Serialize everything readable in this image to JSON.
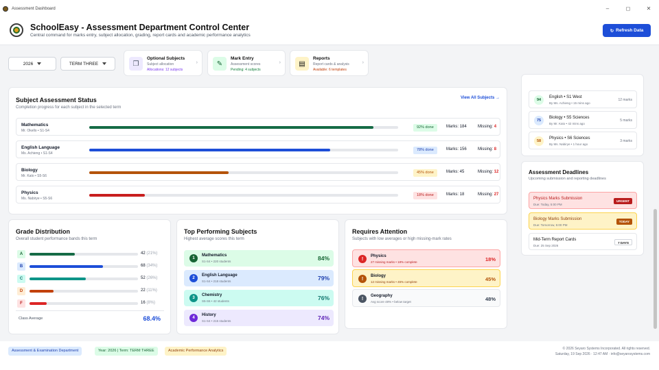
{
  "window": {
    "title": "Assessment Dashboard"
  },
  "header": {
    "title": "SchoolEasy - Assessment Department Control Center",
    "subtitle": "Central command for marks entry, subject allocation, grading, report cards and academic performance analytics",
    "refresh_label": "Refresh Data"
  },
  "filters": {
    "year": "2026",
    "term": "TERM THREE"
  },
  "quick": [
    {
      "title": "Optional Subjects",
      "sub": "Subject allocation",
      "action": "Allocations: 12 subjects"
    },
    {
      "title": "Mark Entry",
      "sub": "Assessment scores",
      "action": "Pending: 4 subjects"
    },
    {
      "title": "Reports",
      "sub": "Report cards & analysis",
      "action": "Available: 6 templates"
    }
  ],
  "status": {
    "title": "Subject Assessment Status",
    "subtitle": "Completion progress for each subject in the selected term",
    "view_all": "View All Subjects →",
    "rows": [
      {
        "name": "Mathematics",
        "meta": "Mr. Okello • S1-S4",
        "progress": 0.92,
        "pct": "92% done",
        "marks": "Marks: 184",
        "missing_label": "Missing:",
        "missing": "4",
        "color": "#166b46"
      },
      {
        "name": "English Language",
        "meta": "Ms. Achieng • S1-S4",
        "progress": 0.78,
        "pct": "78% done",
        "marks": "Marks: 156",
        "missing_label": "Missing:",
        "missing": "8",
        "color": "#1d4ed8"
      },
      {
        "name": "Biology",
        "meta": "Mr. Kato • S5-S6",
        "progress": 0.45,
        "pct": "45% done",
        "marks": "Marks: 45",
        "missing_label": "Missing:",
        "missing": "12",
        "color": "#b45309"
      },
      {
        "name": "Physics",
        "meta": "Ms. Nabirye • S5-S6",
        "progress": 0.18,
        "pct": "18% done",
        "marks": "Marks: 18",
        "missing_label": "Missing:",
        "missing": "27",
        "color": "#c81e1e"
      }
    ]
  },
  "recent": [
    {
      "score": "94",
      "name": "English • S1 West",
      "by": "By Ms. Achieng • 15 mins ago",
      "marks": "12 marks"
    },
    {
      "score": "75",
      "name": "Biology • S5 Sciences",
      "by": "By Mr. Kato • 42 mins ago",
      "marks": "5 marks"
    },
    {
      "score": "58",
      "name": "Physics • S6 Sciences",
      "by": "By Ms. Nabirye • 1 hour ago",
      "marks": "3 marks"
    }
  ],
  "deadlines": {
    "title": "Assessment Deadlines",
    "subtitle": "Upcoming submission and reporting deadlines",
    "items": [
      {
        "name": "Physics Marks Submission",
        "due": "Due: Today, 5:00 PM",
        "badge": "URGENT"
      },
      {
        "name": "Biology Marks Submission",
        "due": "Due: Tomorrow, 5:00 PM",
        "badge": "TODAY"
      },
      {
        "name": "Mid-Term Report Cards",
        "due": "Due: 25 Sep 2026",
        "badge": "7 DAYS"
      }
    ]
  },
  "grades": {
    "title": "Grade Distribution",
    "subtitle": "Overall student performance bands this term",
    "rows": [
      {
        "grade": "A",
        "count": "42",
        "pct": "(21%)",
        "share": 0.21
      },
      {
        "grade": "B",
        "count": "68",
        "pct": "(34%)",
        "share": 0.34
      },
      {
        "grade": "C",
        "count": "52",
        "pct": "(26%)",
        "share": 0.26
      },
      {
        "grade": "D",
        "count": "22",
        "pct": "(11%)",
        "share": 0.11
      },
      {
        "grade": "F",
        "count": "16",
        "pct": "(8%)",
        "share": 0.08
      }
    ],
    "avg_label": "Class Average",
    "avg_value": "68.4%"
  },
  "top": {
    "title": "Top Performing Subjects",
    "subtitle": "Highest average scores this term",
    "rows": [
      {
        "rank": "1",
        "name": "Mathematics",
        "sub": "S1-S4 • 220 students",
        "value": "84%"
      },
      {
        "rank": "2",
        "name": "English Language",
        "sub": "S1-S4 • 218 students",
        "value": "79%"
      },
      {
        "rank": "3",
        "name": "Chemistry",
        "sub": "S5-S6 • 42 students",
        "value": "76%"
      },
      {
        "rank": "4",
        "name": "History",
        "sub": "S1-S4 • 215 students",
        "value": "74%"
      }
    ]
  },
  "attention": {
    "title": "Requires Attention",
    "subtitle": "Subjects with low averages or high missing-mark rates",
    "rows": [
      {
        "name": "Physics",
        "sub": "27 missing marks • 18% complete",
        "value": "18%"
      },
      {
        "name": "Biology",
        "sub": "12 missing marks • 45% complete",
        "value": "45%"
      },
      {
        "name": "Geography",
        "sub": "Avg score 48% • below target",
        "value": "48%"
      }
    ]
  },
  "footer": {
    "chips": [
      "Assessment & Examination Department",
      "Year: 2026 | Term: TERM THREE",
      "Academic Performance Analytics"
    ],
    "copyright": "© 2026 Seyaro Systems Incorporated. All rights reserved.",
    "datetime": "Saturday, 19 Sep 2026 · 12:47 AM · info@seyarosystems.com"
  }
}
